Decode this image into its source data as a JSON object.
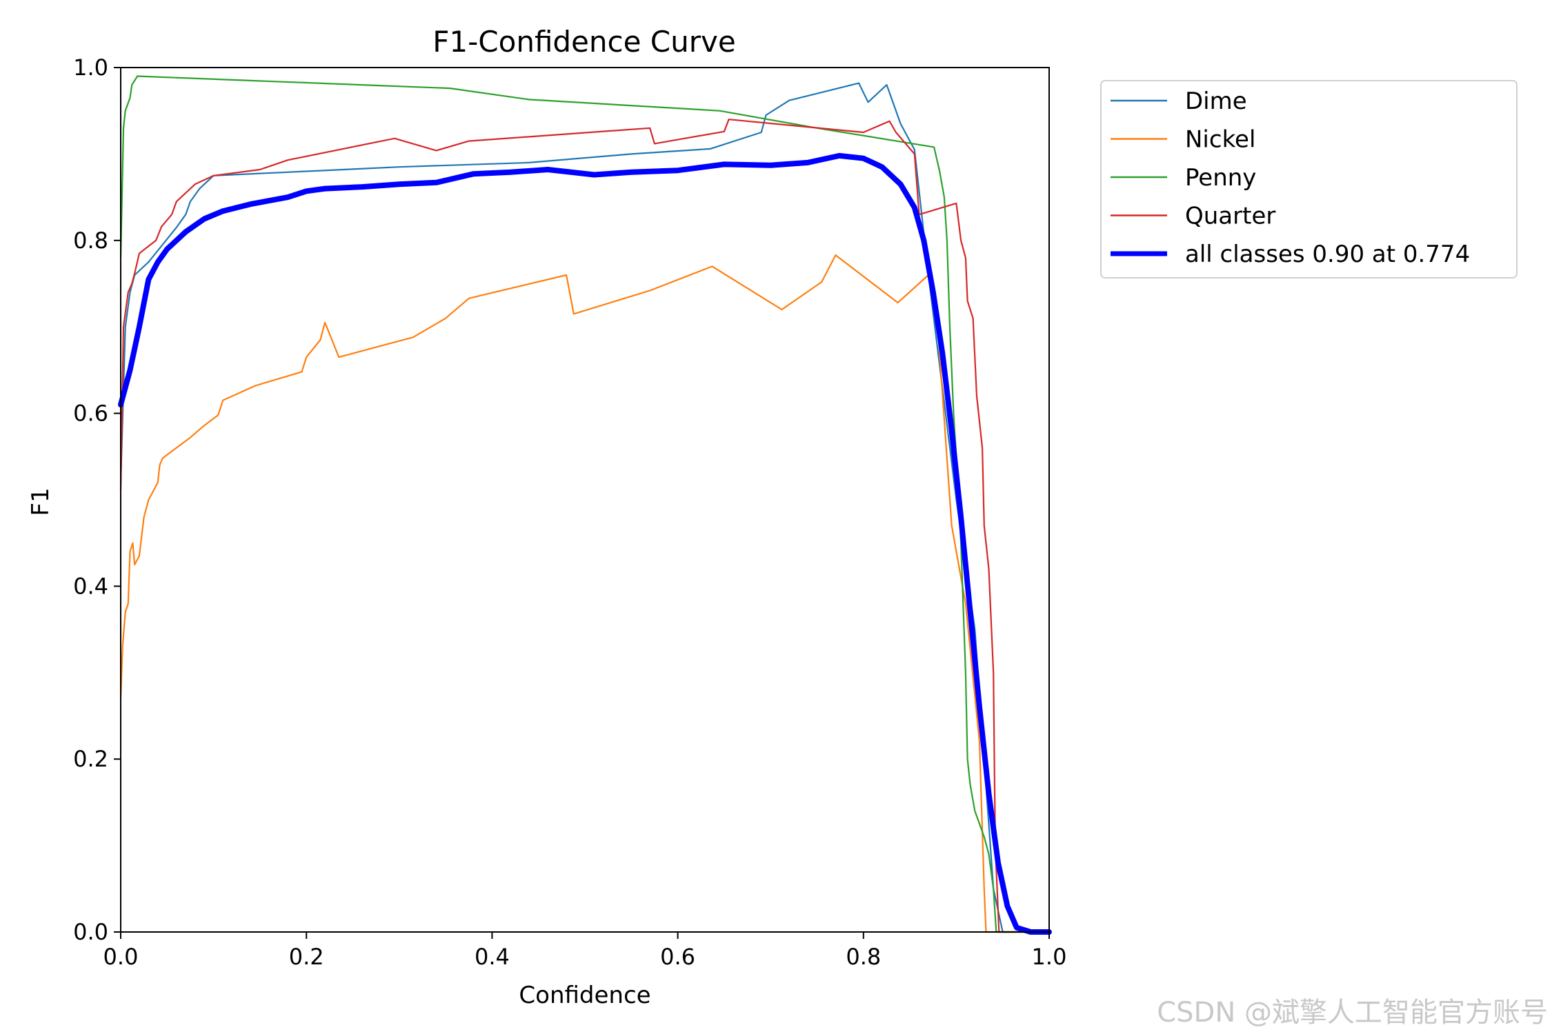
{
  "chart_data": {
    "type": "line",
    "title": "F1-Confidence Curve",
    "xlabel": "Confidence",
    "ylabel": "F1",
    "xlim": [
      0,
      1
    ],
    "ylim": [
      0,
      1
    ],
    "xticks": [
      0.0,
      0.2,
      0.4,
      0.6,
      0.8,
      1.0
    ],
    "yticks": [
      0.0,
      0.2,
      0.4,
      0.6,
      0.8,
      1.0
    ],
    "xtick_labels": [
      "0.0",
      "0.2",
      "0.4",
      "0.6",
      "0.8",
      "1.0"
    ],
    "ytick_labels": [
      "0.0",
      "0.2",
      "0.4",
      "0.6",
      "0.8",
      "1.0"
    ],
    "grid": false,
    "legend_position": "outside-top-right",
    "series": [
      {
        "name": "Dime",
        "color": "#1f77b4",
        "width": 2.2,
        "points": [
          [
            0.0,
            0.52
          ],
          [
            0.005,
            0.7
          ],
          [
            0.01,
            0.74
          ],
          [
            0.015,
            0.76
          ],
          [
            0.03,
            0.775
          ],
          [
            0.045,
            0.795
          ],
          [
            0.06,
            0.815
          ],
          [
            0.07,
            0.83
          ],
          [
            0.075,
            0.845
          ],
          [
            0.085,
            0.86
          ],
          [
            0.1,
            0.875
          ],
          [
            0.2,
            0.88
          ],
          [
            0.3,
            0.885
          ],
          [
            0.44,
            0.89
          ],
          [
            0.55,
            0.9
          ],
          [
            0.635,
            0.906
          ],
          [
            0.69,
            0.925
          ],
          [
            0.695,
            0.945
          ],
          [
            0.72,
            0.962
          ],
          [
            0.795,
            0.982
          ],
          [
            0.805,
            0.96
          ],
          [
            0.825,
            0.98
          ],
          [
            0.84,
            0.935
          ],
          [
            0.855,
            0.905
          ],
          [
            0.87,
            0.76
          ],
          [
            0.9,
            0.5
          ],
          [
            0.92,
            0.35
          ],
          [
            0.94,
            0.05
          ],
          [
            0.95,
            0.0
          ],
          [
            1.0,
            0.0
          ]
        ]
      },
      {
        "name": "Nickel",
        "color": "#ff7f0e",
        "width": 2.2,
        "points": [
          [
            0.0,
            0.27
          ],
          [
            0.002,
            0.33
          ],
          [
            0.005,
            0.37
          ],
          [
            0.008,
            0.38
          ],
          [
            0.01,
            0.44
          ],
          [
            0.013,
            0.45
          ],
          [
            0.015,
            0.425
          ],
          [
            0.02,
            0.435
          ],
          [
            0.025,
            0.48
          ],
          [
            0.03,
            0.5
          ],
          [
            0.035,
            0.51
          ],
          [
            0.04,
            0.52
          ],
          [
            0.042,
            0.54
          ],
          [
            0.045,
            0.548
          ],
          [
            0.075,
            0.572
          ],
          [
            0.09,
            0.586
          ],
          [
            0.105,
            0.598
          ],
          [
            0.11,
            0.615
          ],
          [
            0.145,
            0.632
          ],
          [
            0.195,
            0.648
          ],
          [
            0.2,
            0.665
          ],
          [
            0.215,
            0.685
          ],
          [
            0.22,
            0.705
          ],
          [
            0.235,
            0.665
          ],
          [
            0.315,
            0.688
          ],
          [
            0.35,
            0.71
          ],
          [
            0.375,
            0.733
          ],
          [
            0.48,
            0.76
          ],
          [
            0.488,
            0.715
          ],
          [
            0.57,
            0.742
          ],
          [
            0.637,
            0.77
          ],
          [
            0.712,
            0.72
          ],
          [
            0.755,
            0.752
          ],
          [
            0.77,
            0.783
          ],
          [
            0.837,
            0.728
          ],
          [
            0.872,
            0.762
          ],
          [
            0.88,
            0.7
          ],
          [
            0.895,
            0.47
          ],
          [
            0.91,
            0.38
          ],
          [
            0.925,
            0.22
          ],
          [
            0.93,
            0.05
          ],
          [
            0.932,
            0.0
          ],
          [
            1.0,
            0.0
          ]
        ]
      },
      {
        "name": "Penny",
        "color": "#2ca02c",
        "width": 2.2,
        "points": [
          [
            0.0,
            0.78
          ],
          [
            0.003,
            0.93
          ],
          [
            0.005,
            0.95
          ],
          [
            0.01,
            0.965
          ],
          [
            0.012,
            0.98
          ],
          [
            0.018,
            0.99
          ],
          [
            0.355,
            0.976
          ],
          [
            0.44,
            0.963
          ],
          [
            0.645,
            0.95
          ],
          [
            0.75,
            0.93
          ],
          [
            0.876,
            0.908
          ],
          [
            0.882,
            0.88
          ],
          [
            0.887,
            0.85
          ],
          [
            0.89,
            0.8
          ],
          [
            0.893,
            0.7
          ],
          [
            0.897,
            0.6
          ],
          [
            0.9,
            0.55
          ],
          [
            0.905,
            0.45
          ],
          [
            0.91,
            0.3
          ],
          [
            0.912,
            0.2
          ],
          [
            0.915,
            0.17
          ],
          [
            0.92,
            0.14
          ],
          [
            0.93,
            0.11
          ],
          [
            0.935,
            0.09
          ],
          [
            0.94,
            0.05
          ],
          [
            0.943,
            0.0
          ],
          [
            1.0,
            0.0
          ]
        ]
      },
      {
        "name": "Quarter",
        "color": "#d62728",
        "width": 2.2,
        "points": [
          [
            0.0,
            0.51
          ],
          [
            0.003,
            0.7
          ],
          [
            0.008,
            0.74
          ],
          [
            0.012,
            0.75
          ],
          [
            0.015,
            0.762
          ],
          [
            0.02,
            0.785
          ],
          [
            0.038,
            0.8
          ],
          [
            0.044,
            0.816
          ],
          [
            0.055,
            0.83
          ],
          [
            0.06,
            0.845
          ],
          [
            0.08,
            0.865
          ],
          [
            0.1,
            0.875
          ],
          [
            0.15,
            0.882
          ],
          [
            0.18,
            0.893
          ],
          [
            0.295,
            0.918
          ],
          [
            0.34,
            0.904
          ],
          [
            0.375,
            0.915
          ],
          [
            0.57,
            0.93
          ],
          [
            0.575,
            0.912
          ],
          [
            0.65,
            0.926
          ],
          [
            0.655,
            0.94
          ],
          [
            0.8,
            0.925
          ],
          [
            0.828,
            0.938
          ],
          [
            0.835,
            0.925
          ],
          [
            0.855,
            0.9
          ],
          [
            0.86,
            0.83
          ],
          [
            0.9,
            0.843
          ],
          [
            0.905,
            0.8
          ],
          [
            0.91,
            0.78
          ],
          [
            0.912,
            0.73
          ],
          [
            0.918,
            0.71
          ],
          [
            0.922,
            0.62
          ],
          [
            0.928,
            0.56
          ],
          [
            0.93,
            0.47
          ],
          [
            0.935,
            0.42
          ],
          [
            0.94,
            0.3
          ],
          [
            0.942,
            0.1
          ],
          [
            0.946,
            0.0
          ],
          [
            1.0,
            0.0
          ]
        ]
      },
      {
        "name": "all classes 0.90 at 0.774",
        "color": "#0000ff",
        "width": 8,
        "points": [
          [
            0.0,
            0.61
          ],
          [
            0.01,
            0.65
          ],
          [
            0.02,
            0.7
          ],
          [
            0.03,
            0.755
          ],
          [
            0.04,
            0.775
          ],
          [
            0.05,
            0.79
          ],
          [
            0.06,
            0.8
          ],
          [
            0.07,
            0.81
          ],
          [
            0.09,
            0.825
          ],
          [
            0.11,
            0.834
          ],
          [
            0.14,
            0.842
          ],
          [
            0.18,
            0.85
          ],
          [
            0.2,
            0.857
          ],
          [
            0.22,
            0.86
          ],
          [
            0.26,
            0.862
          ],
          [
            0.3,
            0.865
          ],
          [
            0.34,
            0.867
          ],
          [
            0.38,
            0.877
          ],
          [
            0.42,
            0.879
          ],
          [
            0.46,
            0.882
          ],
          [
            0.51,
            0.876
          ],
          [
            0.55,
            0.879
          ],
          [
            0.6,
            0.881
          ],
          [
            0.65,
            0.888
          ],
          [
            0.7,
            0.887
          ],
          [
            0.74,
            0.89
          ],
          [
            0.774,
            0.898
          ],
          [
            0.8,
            0.895
          ],
          [
            0.82,
            0.885
          ],
          [
            0.84,
            0.865
          ],
          [
            0.855,
            0.838
          ],
          [
            0.865,
            0.8
          ],
          [
            0.875,
            0.74
          ],
          [
            0.885,
            0.67
          ],
          [
            0.895,
            0.58
          ],
          [
            0.905,
            0.48
          ],
          [
            0.915,
            0.37
          ],
          [
            0.925,
            0.26
          ],
          [
            0.935,
            0.16
          ],
          [
            0.945,
            0.08
          ],
          [
            0.955,
            0.03
          ],
          [
            0.965,
            0.005
          ],
          [
            0.98,
            0.0
          ],
          [
            1.0,
            0.0
          ]
        ]
      }
    ]
  },
  "watermark": "CSDN @斌擎人工智能官方账号"
}
